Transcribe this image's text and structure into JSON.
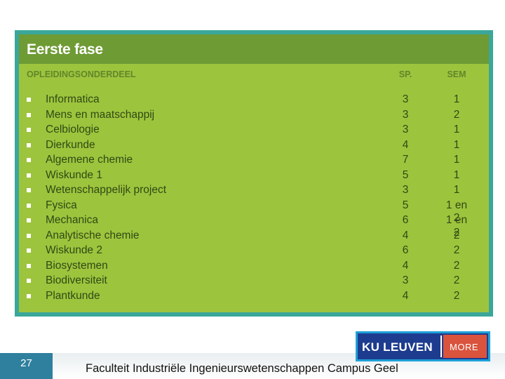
{
  "title": "Eerste fase",
  "headers": {
    "course": "OPLEIDINGSONDERDEEL",
    "sp": "SP.",
    "sem": "SEM"
  },
  "courses": [
    {
      "name": "Informatica",
      "sp": "3",
      "sem": "1"
    },
    {
      "name": "Mens en maatschappij",
      "sp": "3",
      "sem": "2"
    },
    {
      "name": "Celbiologie",
      "sp": "3",
      "sem": "1"
    },
    {
      "name": "Dierkunde",
      "sp": "4",
      "sem": "1"
    },
    {
      "name": "Algemene chemie",
      "sp": "7",
      "sem": "1"
    },
    {
      "name": "Wiskunde 1",
      "sp": "5",
      "sem": "1"
    },
    {
      "name": "Wetenschappelijk project",
      "sp": "3",
      "sem": "1"
    },
    {
      "name": "Fysica",
      "sp": "5",
      "sem": "1 en 2"
    },
    {
      "name": "Mechanica",
      "sp": "6",
      "sem": "1 en 2"
    },
    {
      "name": "Analytische chemie",
      "sp": "4",
      "sem": "2"
    },
    {
      "name": "Wiskunde 2",
      "sp": "6",
      "sem": "2"
    },
    {
      "name": "Biosystemen",
      "sp": "4",
      "sem": "2"
    },
    {
      "name": "Biodiversiteit",
      "sp": "3",
      "sem": "2"
    },
    {
      "name": "Plantkunde",
      "sp": "4",
      "sem": "2"
    }
  ],
  "footer": {
    "page_number": "27",
    "text": "Faculteit Industriële Ingenieurswetenschappen Campus Geel",
    "logo_kul": "KU LEUVEN",
    "logo_moore": "MORE"
  },
  "colors": {
    "panel_border": "#3aa79a",
    "panel_bg": "#9dc43d",
    "title_bar": "#6e9b34",
    "page_tab": "#2f7f9e"
  }
}
